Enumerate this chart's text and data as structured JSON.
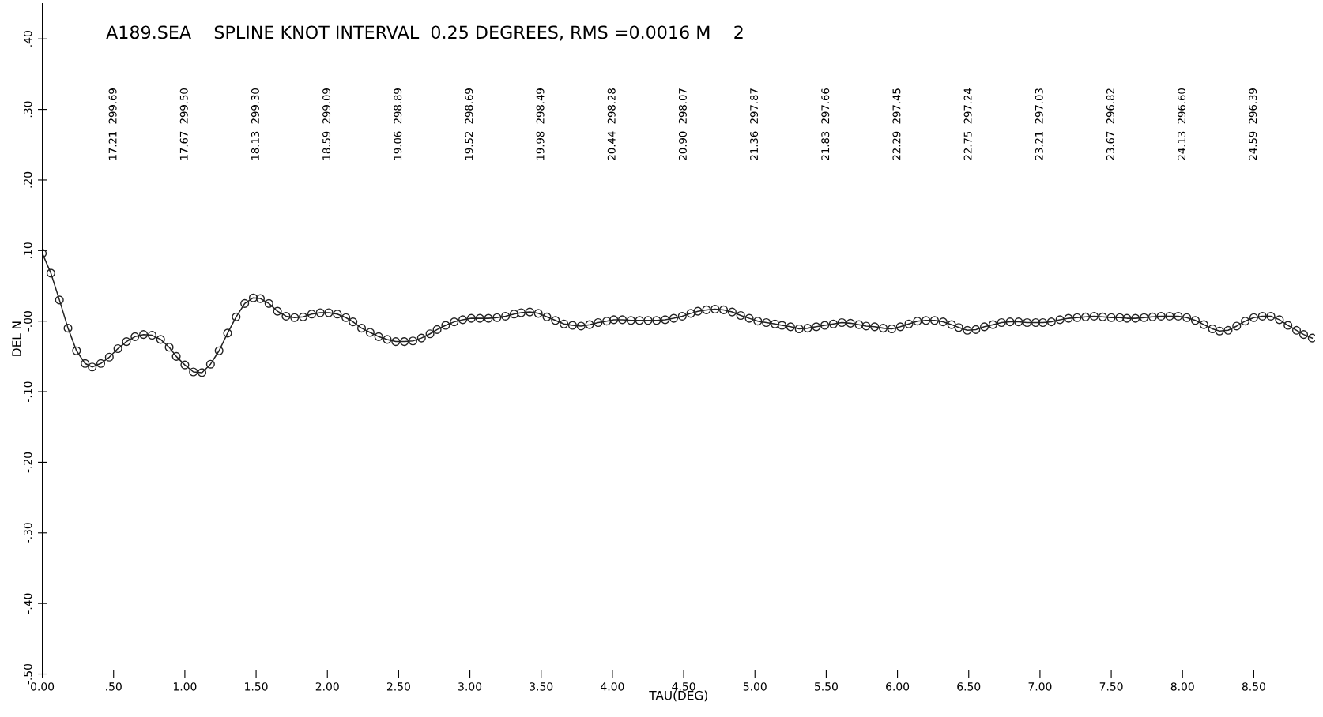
{
  "chart_data": {
    "type": "line",
    "title": "A189.SEA    SPLINE KNOT INTERVAL  0.25 DEGREES, RMS =0.0016 M    2",
    "xlabel": "TAU(DEG)",
    "ylabel": "DEL N",
    "x": [
      0.0,
      0.06,
      0.12,
      0.18,
      0.24,
      0.3,
      0.35,
      0.41,
      0.47,
      0.53,
      0.59,
      0.65,
      0.71,
      0.77,
      0.83,
      0.89,
      0.94,
      1.0,
      1.06,
      1.12,
      1.18,
      1.24,
      1.3,
      1.36,
      1.42,
      1.48,
      1.53,
      1.59,
      1.65,
      1.71,
      1.77,
      1.83,
      1.89,
      1.95,
      2.01,
      2.07,
      2.13,
      2.18,
      2.24,
      2.3,
      2.36,
      2.42,
      2.48,
      2.54,
      2.6,
      2.66,
      2.72,
      2.77,
      2.83,
      2.89,
      2.95,
      3.01,
      3.07,
      3.13,
      3.19,
      3.25,
      3.31,
      3.36,
      3.42,
      3.48,
      3.54,
      3.6,
      3.66,
      3.72,
      3.78,
      3.84,
      3.9,
      3.96,
      4.01,
      4.07,
      4.13,
      4.19,
      4.25,
      4.31,
      4.37,
      4.43,
      4.49,
      4.55,
      4.6,
      4.66,
      4.72,
      4.78,
      4.84,
      4.9,
      4.96,
      5.02,
      5.08,
      5.14,
      5.19,
      5.25,
      5.31,
      5.37,
      5.43,
      5.49,
      5.55,
      5.61,
      5.67,
      5.73,
      5.78,
      5.84,
      5.9,
      5.96,
      6.02,
      6.08,
      6.14,
      6.2,
      6.26,
      6.32,
      6.38,
      6.43,
      6.49,
      6.55,
      6.61,
      6.67,
      6.73,
      6.79,
      6.85,
      6.91,
      6.97,
      7.02,
      7.08,
      7.14,
      7.2,
      7.26,
      7.32,
      7.38,
      7.44,
      7.5,
      7.56,
      7.61,
      7.67,
      7.73,
      7.79,
      7.85,
      7.91,
      7.97,
      8.03,
      8.09,
      8.15,
      8.21,
      8.26,
      8.32,
      8.38,
      8.44,
      8.5,
      8.56,
      8.62,
      8.68,
      8.74,
      8.8,
      8.85,
      8.91
    ],
    "series": [
      {
        "color": "#222222",
        "values": [
          0.096,
          0.068,
          0.03,
          -0.01,
          -0.042,
          -0.06,
          -0.065,
          -0.06,
          -0.051,
          -0.039,
          -0.029,
          -0.022,
          -0.019,
          -0.02,
          -0.026,
          -0.037,
          -0.05,
          -0.062,
          -0.072,
          -0.073,
          -0.061,
          -0.042,
          -0.017,
          0.006,
          0.025,
          0.033,
          0.032,
          0.025,
          0.014,
          0.007,
          0.005,
          0.006,
          0.01,
          0.012,
          0.012,
          0.01,
          0.005,
          -0.001,
          -0.01,
          -0.016,
          -0.022,
          -0.026,
          -0.029,
          -0.029,
          -0.028,
          -0.024,
          -0.018,
          -0.012,
          -0.006,
          -0.001,
          0.002,
          0.004,
          0.004,
          0.004,
          0.005,
          0.007,
          0.01,
          0.012,
          0.013,
          0.011,
          0.006,
          0.001,
          -0.004,
          -0.006,
          -0.007,
          -0.005,
          -0.002,
          0.0,
          0.002,
          0.002,
          0.001,
          0.001,
          0.001,
          0.001,
          0.002,
          0.004,
          0.007,
          0.011,
          0.014,
          0.016,
          0.017,
          0.016,
          0.013,
          0.008,
          0.004,
          0.0,
          -0.002,
          -0.004,
          -0.006,
          -0.008,
          -0.011,
          -0.01,
          -0.008,
          -0.006,
          -0.004,
          -0.002,
          -0.003,
          -0.005,
          -0.007,
          -0.008,
          -0.01,
          -0.011,
          -0.008,
          -0.004,
          0.0,
          0.001,
          0.001,
          -0.001,
          -0.005,
          -0.009,
          -0.013,
          -0.012,
          -0.008,
          -0.005,
          -0.002,
          -0.001,
          -0.001,
          -0.002,
          -0.002,
          -0.002,
          -0.001,
          0.002,
          0.004,
          0.005,
          0.006,
          0.007,
          0.006,
          0.005,
          0.005,
          0.004,
          0.004,
          0.005,
          0.006,
          0.007,
          0.007,
          0.007,
          0.005,
          0.001,
          -0.005,
          -0.011,
          -0.014,
          -0.013,
          -0.007,
          0.0,
          0.005,
          0.007,
          0.007,
          0.002,
          -0.006,
          -0.013,
          -0.019,
          -0.024
        ]
      }
    ],
    "marker": "circle",
    "line_style": "solid",
    "grid": false,
    "legend": false,
    "xlim": [
      0,
      8.93
    ],
    "ylim": [
      -0.5,
      0.45
    ],
    "xticks": [
      {
        "value": 0,
        "label": "0.00"
      },
      {
        "value": 0.5,
        "label": ".50"
      },
      {
        "value": 1.0,
        "label": "1.00"
      },
      {
        "value": 1.5,
        "label": "1.50"
      },
      {
        "value": 2.0,
        "label": "2.00"
      },
      {
        "value": 2.5,
        "label": "2.50"
      },
      {
        "value": 3.0,
        "label": "3.00"
      },
      {
        "value": 3.5,
        "label": "3.50"
      },
      {
        "value": 4.0,
        "label": "4.00"
      },
      {
        "value": 4.5,
        "label": "4.50"
      },
      {
        "value": 5.0,
        "label": "5.00"
      },
      {
        "value": 5.5,
        "label": "5.50"
      },
      {
        "value": 6.0,
        "label": "6.00"
      },
      {
        "value": 6.5,
        "label": "6.50"
      },
      {
        "value": 7.0,
        "label": "7.00"
      },
      {
        "value": 7.5,
        "label": "7.50"
      },
      {
        "value": 8.0,
        "label": "8.00"
      },
      {
        "value": 8.5,
        "label": "8.50"
      }
    ],
    "yticks": [
      {
        "value": -0.5,
        "label": "-.50"
      },
      {
        "value": -0.4,
        "label": "-.40"
      },
      {
        "value": -0.3,
        "label": "-.30"
      },
      {
        "value": -0.2,
        "label": "-.20"
      },
      {
        "value": -0.1,
        "label": "-.10"
      },
      {
        "value": 0,
        "label": "-.00"
      },
      {
        "value": 0.1,
        "label": ".10"
      },
      {
        "value": 0.2,
        "label": ".20"
      },
      {
        "value": 0.3,
        "label": ".30"
      },
      {
        "value": 0.4,
        "label": ".40"
      }
    ],
    "annotations": [
      "17.21  299.69",
      "17.67  299.50",
      "18.13  299.30",
      "18.59  299.09",
      "19.06  298.89",
      "19.52  298.69",
      "19.98  298.49",
      "20.44  298.28",
      "20.90  298.07",
      "21.36  297.87",
      "21.83  297.66",
      "22.29  297.45",
      "22.75  297.24",
      "23.21  297.03",
      "23.67  296.82",
      "24.13  296.60",
      "24.59  296.39"
    ]
  }
}
